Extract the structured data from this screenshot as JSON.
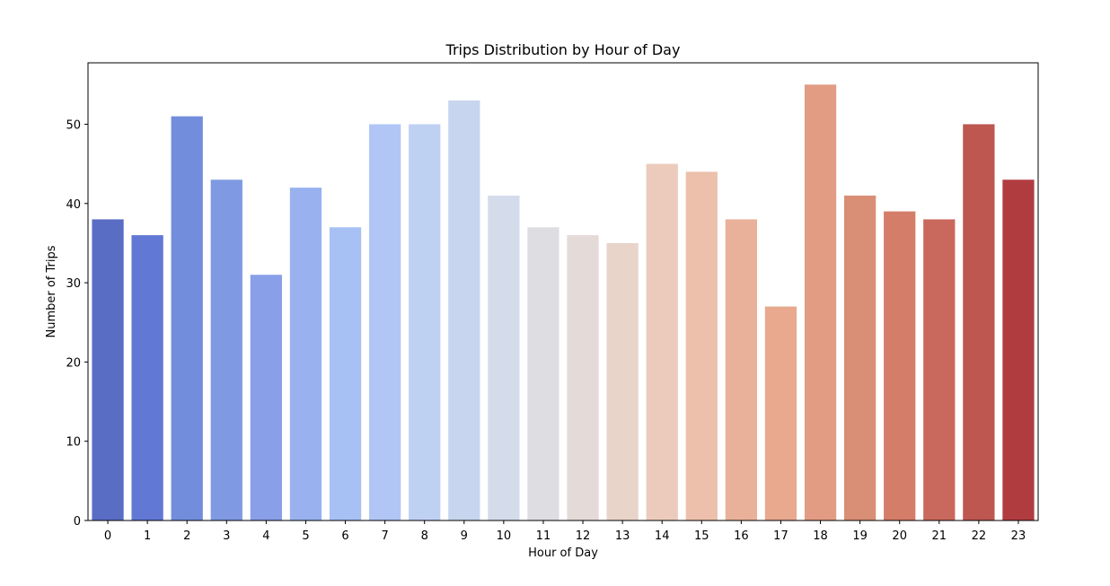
{
  "chart_data": {
    "type": "bar",
    "title": "Trips Distribution by Hour of Day",
    "xlabel": "Hour of Day",
    "ylabel": "Number of Trips",
    "categories": [
      "0",
      "1",
      "2",
      "3",
      "4",
      "5",
      "6",
      "7",
      "8",
      "9",
      "10",
      "11",
      "12",
      "13",
      "14",
      "15",
      "16",
      "17",
      "18",
      "19",
      "20",
      "21",
      "22",
      "23"
    ],
    "values": [
      38,
      36,
      51,
      43,
      31,
      42,
      37,
      50,
      50,
      53,
      41,
      37,
      36,
      35,
      45,
      44,
      38,
      27,
      55,
      41,
      39,
      38,
      50,
      43
    ],
    "colors": [
      "#5a6dc5",
      "#6178d4",
      "#728ddc",
      "#7f9ae3",
      "#899fe8",
      "#99b2ef",
      "#a7c1f5",
      "#b1c6f5",
      "#bfd1f3",
      "#c8d5ee",
      "#d4dceb",
      "#dedee2",
      "#e4dad7",
      "#e9d4ca",
      "#eccbbd",
      "#ecc0ab",
      "#e9b19a",
      "#e8a98f",
      "#e29c83",
      "#d88f76",
      "#d47d68",
      "#c9685c",
      "#bd5750",
      "#b13c40"
    ],
    "yticks": [
      0,
      10,
      20,
      30,
      40,
      50
    ],
    "ylim": [
      0,
      57.75
    ],
    "grid": false,
    "legend": "none"
  }
}
